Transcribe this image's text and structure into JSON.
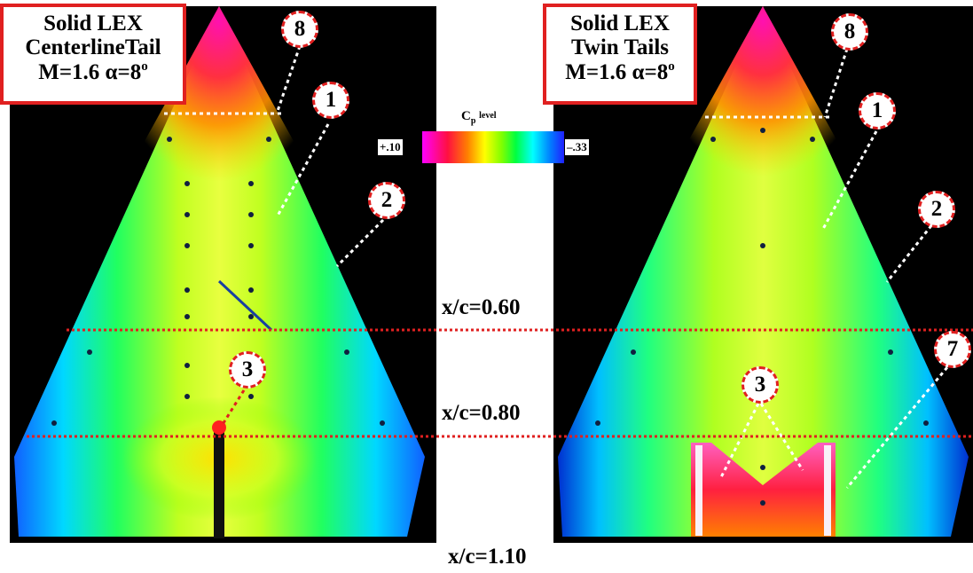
{
  "left_panel": {
    "title_line1": "Solid LEX",
    "title_line2": "CenterlineTail",
    "title_line3_prefix": "M=1.6  α=8",
    "title_line3_sup": "o",
    "callouts": [
      "8",
      "1",
      "2",
      "3"
    ]
  },
  "right_panel": {
    "title_line1": "Solid LEX",
    "title_line2": "Twin Tails",
    "title_line3_prefix": "M=1.6  α=8",
    "title_line3_sup": "o",
    "callouts": [
      "8",
      "1",
      "2",
      "3",
      "7"
    ]
  },
  "legend": {
    "label_main": "C",
    "label_sub": "p",
    "label_suffix": "level",
    "max_value": "+.10",
    "min_value": "–.33",
    "colors": [
      "#ff00ff",
      "#ff1040",
      "#ff8000",
      "#ffff00",
      "#80ff00",
      "#00ff40",
      "#00ffff",
      "#0080ff",
      "#2020ff"
    ]
  },
  "stations": [
    "x/c=0.60",
    "x/c=0.80",
    "x/c=1.10"
  ],
  "line_color": "#e02020"
}
